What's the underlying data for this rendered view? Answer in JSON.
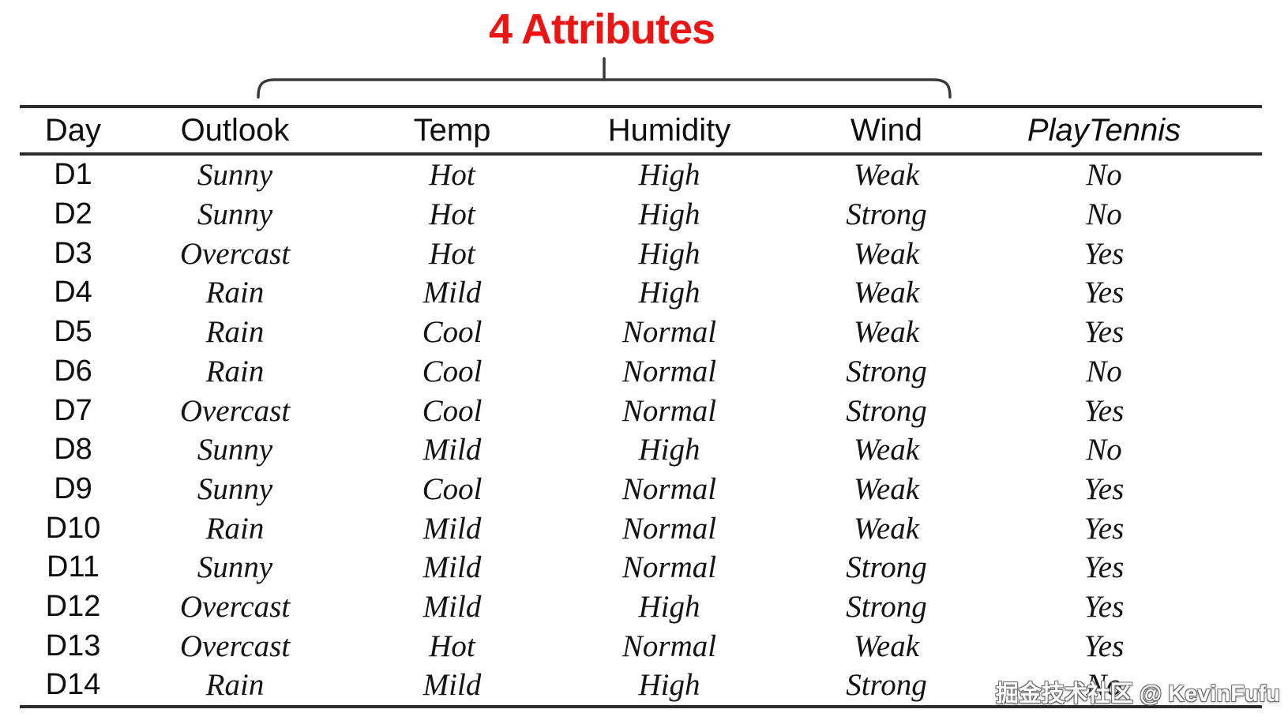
{
  "annotation": {
    "title": "4 Attributes",
    "color": "#ee1414"
  },
  "watermark": {
    "text": "掘金技术社区 @ KevinFufu"
  },
  "chart_data": {
    "type": "table",
    "title": "4 Attributes",
    "columns": [
      "Day",
      "Outlook",
      "Temp",
      "Humidity",
      "Wind",
      "PlayTennis"
    ],
    "rows": [
      [
        "D1",
        "Sunny",
        "Hot",
        "High",
        "Weak",
        "No"
      ],
      [
        "D2",
        "Sunny",
        "Hot",
        "High",
        "Strong",
        "No"
      ],
      [
        "D3",
        "Overcast",
        "Hot",
        "High",
        "Weak",
        "Yes"
      ],
      [
        "D4",
        "Rain",
        "Mild",
        "High",
        "Weak",
        "Yes"
      ],
      [
        "D5",
        "Rain",
        "Cool",
        "Normal",
        "Weak",
        "Yes"
      ],
      [
        "D6",
        "Rain",
        "Cool",
        "Normal",
        "Strong",
        "No"
      ],
      [
        "D7",
        "Overcast",
        "Cool",
        "Normal",
        "Strong",
        "Yes"
      ],
      [
        "D8",
        "Sunny",
        "Mild",
        "High",
        "Weak",
        "No"
      ],
      [
        "D9",
        "Sunny",
        "Cool",
        "Normal",
        "Weak",
        "Yes"
      ],
      [
        "D10",
        "Rain",
        "Mild",
        "Normal",
        "Weak",
        "Yes"
      ],
      [
        "D11",
        "Sunny",
        "Mild",
        "Normal",
        "Strong",
        "Yes"
      ],
      [
        "D12",
        "Overcast",
        "Mild",
        "High",
        "Strong",
        "Yes"
      ],
      [
        "D13",
        "Overcast",
        "Hot",
        "Normal",
        "Weak",
        "Yes"
      ],
      [
        "D14",
        "Rain",
        "Mild",
        "High",
        "Strong",
        "No"
      ]
    ]
  }
}
